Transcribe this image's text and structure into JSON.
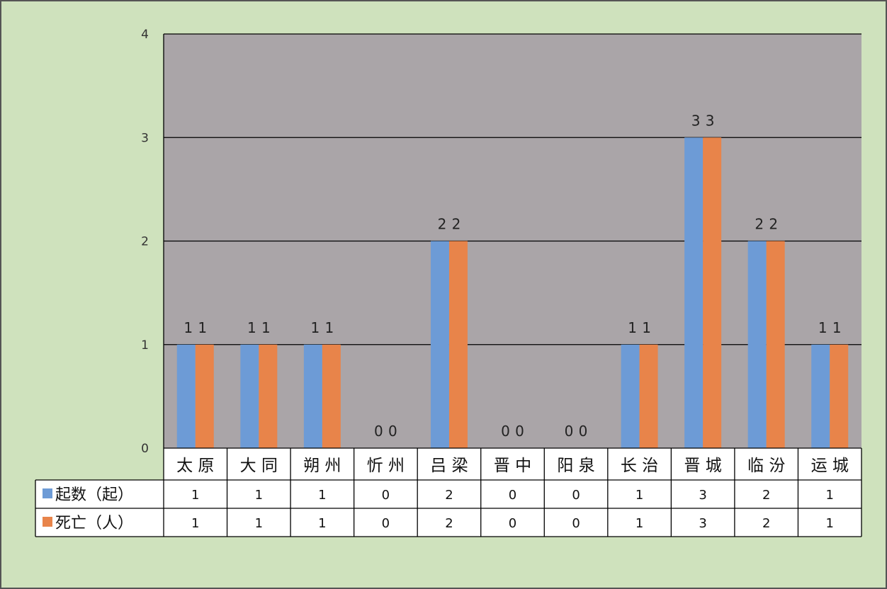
{
  "chart_data": {
    "type": "bar",
    "categories": [
      "太 原",
      "大 同",
      "朔 州",
      "忻 州",
      "吕 梁",
      "晋 中",
      "阳 泉",
      "长 治",
      "晋 城",
      "临 汾",
      "运 城"
    ],
    "series": [
      {
        "name": "起数（起）",
        "values": [
          1,
          1,
          1,
          0,
          2,
          0,
          0,
          1,
          3,
          2,
          1
        ],
        "color": "#6d9bd6"
      },
      {
        "name": "死亡（人）",
        "values": [
          1,
          1,
          1,
          0,
          2,
          0,
          0,
          1,
          3,
          2,
          1
        ],
        "color": "#e8844a"
      }
    ],
    "ylim": [
      0,
      4
    ],
    "yticks": [
      "0",
      "1",
      "2",
      "3",
      "4"
    ],
    "grid": true,
    "data_labels": true,
    "legend": "data-table",
    "colors": {
      "frame_background": "#cfe2bd",
      "plot_background": "#aaa5a8",
      "table_background": "#ffffff",
      "gridline": "#000000"
    }
  }
}
